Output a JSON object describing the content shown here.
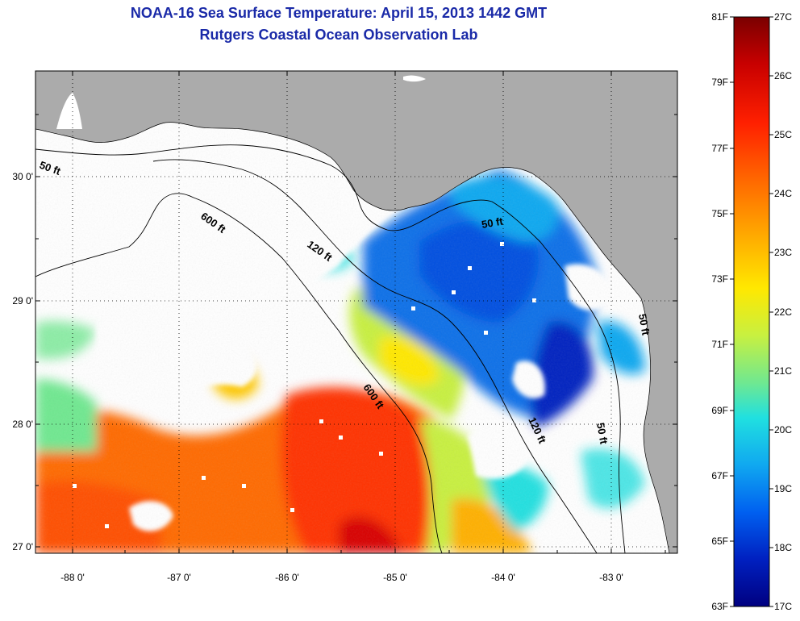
{
  "title": {
    "line1": "NOAA-16 Sea Surface Temperature:  April 15, 2013 1442 GMT",
    "line2": "Rutgers Coastal Ocean Observation Lab"
  },
  "map": {
    "lon_ticks": [
      "-88 0'",
      "-87 0'",
      "-86 0'",
      "-85 0'",
      "-84 0'",
      "-83 0'"
    ],
    "lat_ticks": [
      "30 0'",
      "29 0'",
      "28 0'",
      "27 0'"
    ],
    "contour_labels": [
      "50 ft",
      "600 ft",
      "120 ft",
      "50 ft",
      "600 ft",
      "120 ft",
      "50 ft",
      "50 ft"
    ]
  },
  "colorbar": {
    "fahrenheit": [
      "81F",
      "79F",
      "77F",
      "75F",
      "73F",
      "71F",
      "69F",
      "67F",
      "65F",
      "63F"
    ],
    "celsius": [
      "27C",
      "26C",
      "25C",
      "24C",
      "23C",
      "22C",
      "21C",
      "20C",
      "19C",
      "18C",
      "17C"
    ],
    "colors": [
      "#7a0000",
      "#c80000",
      "#ff2000",
      "#ff6a00",
      "#ffb000",
      "#ffe800",
      "#c8f040",
      "#70e890",
      "#20e0e0",
      "#10a8f0",
      "#0060f0",
      "#0020c0",
      "#000080"
    ]
  },
  "colors": {
    "land": "#ababab",
    "title": "#1a2aa8",
    "cloud": "#ffffff"
  }
}
